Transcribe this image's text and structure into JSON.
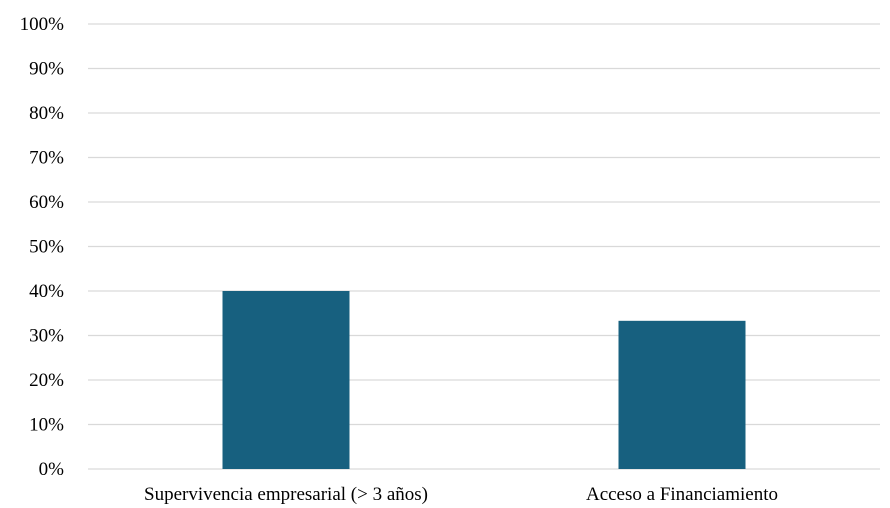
{
  "chart_data": {
    "type": "bar",
    "categories": [
      "Supervivencia empresarial (> 3 años)",
      "Acceso a Financiamiento"
    ],
    "values": [
      0.4,
      0.333
    ],
    "title": "",
    "xlabel": "",
    "ylabel": "",
    "ylim": [
      0,
      1
    ],
    "yticks": [
      "0%",
      "10%",
      "20%",
      "30%",
      "40%",
      "50%",
      "60%",
      "70%",
      "80%",
      "90%",
      "100%"
    ],
    "grid": true,
    "legend": "none",
    "bar_color": "#17607f"
  }
}
